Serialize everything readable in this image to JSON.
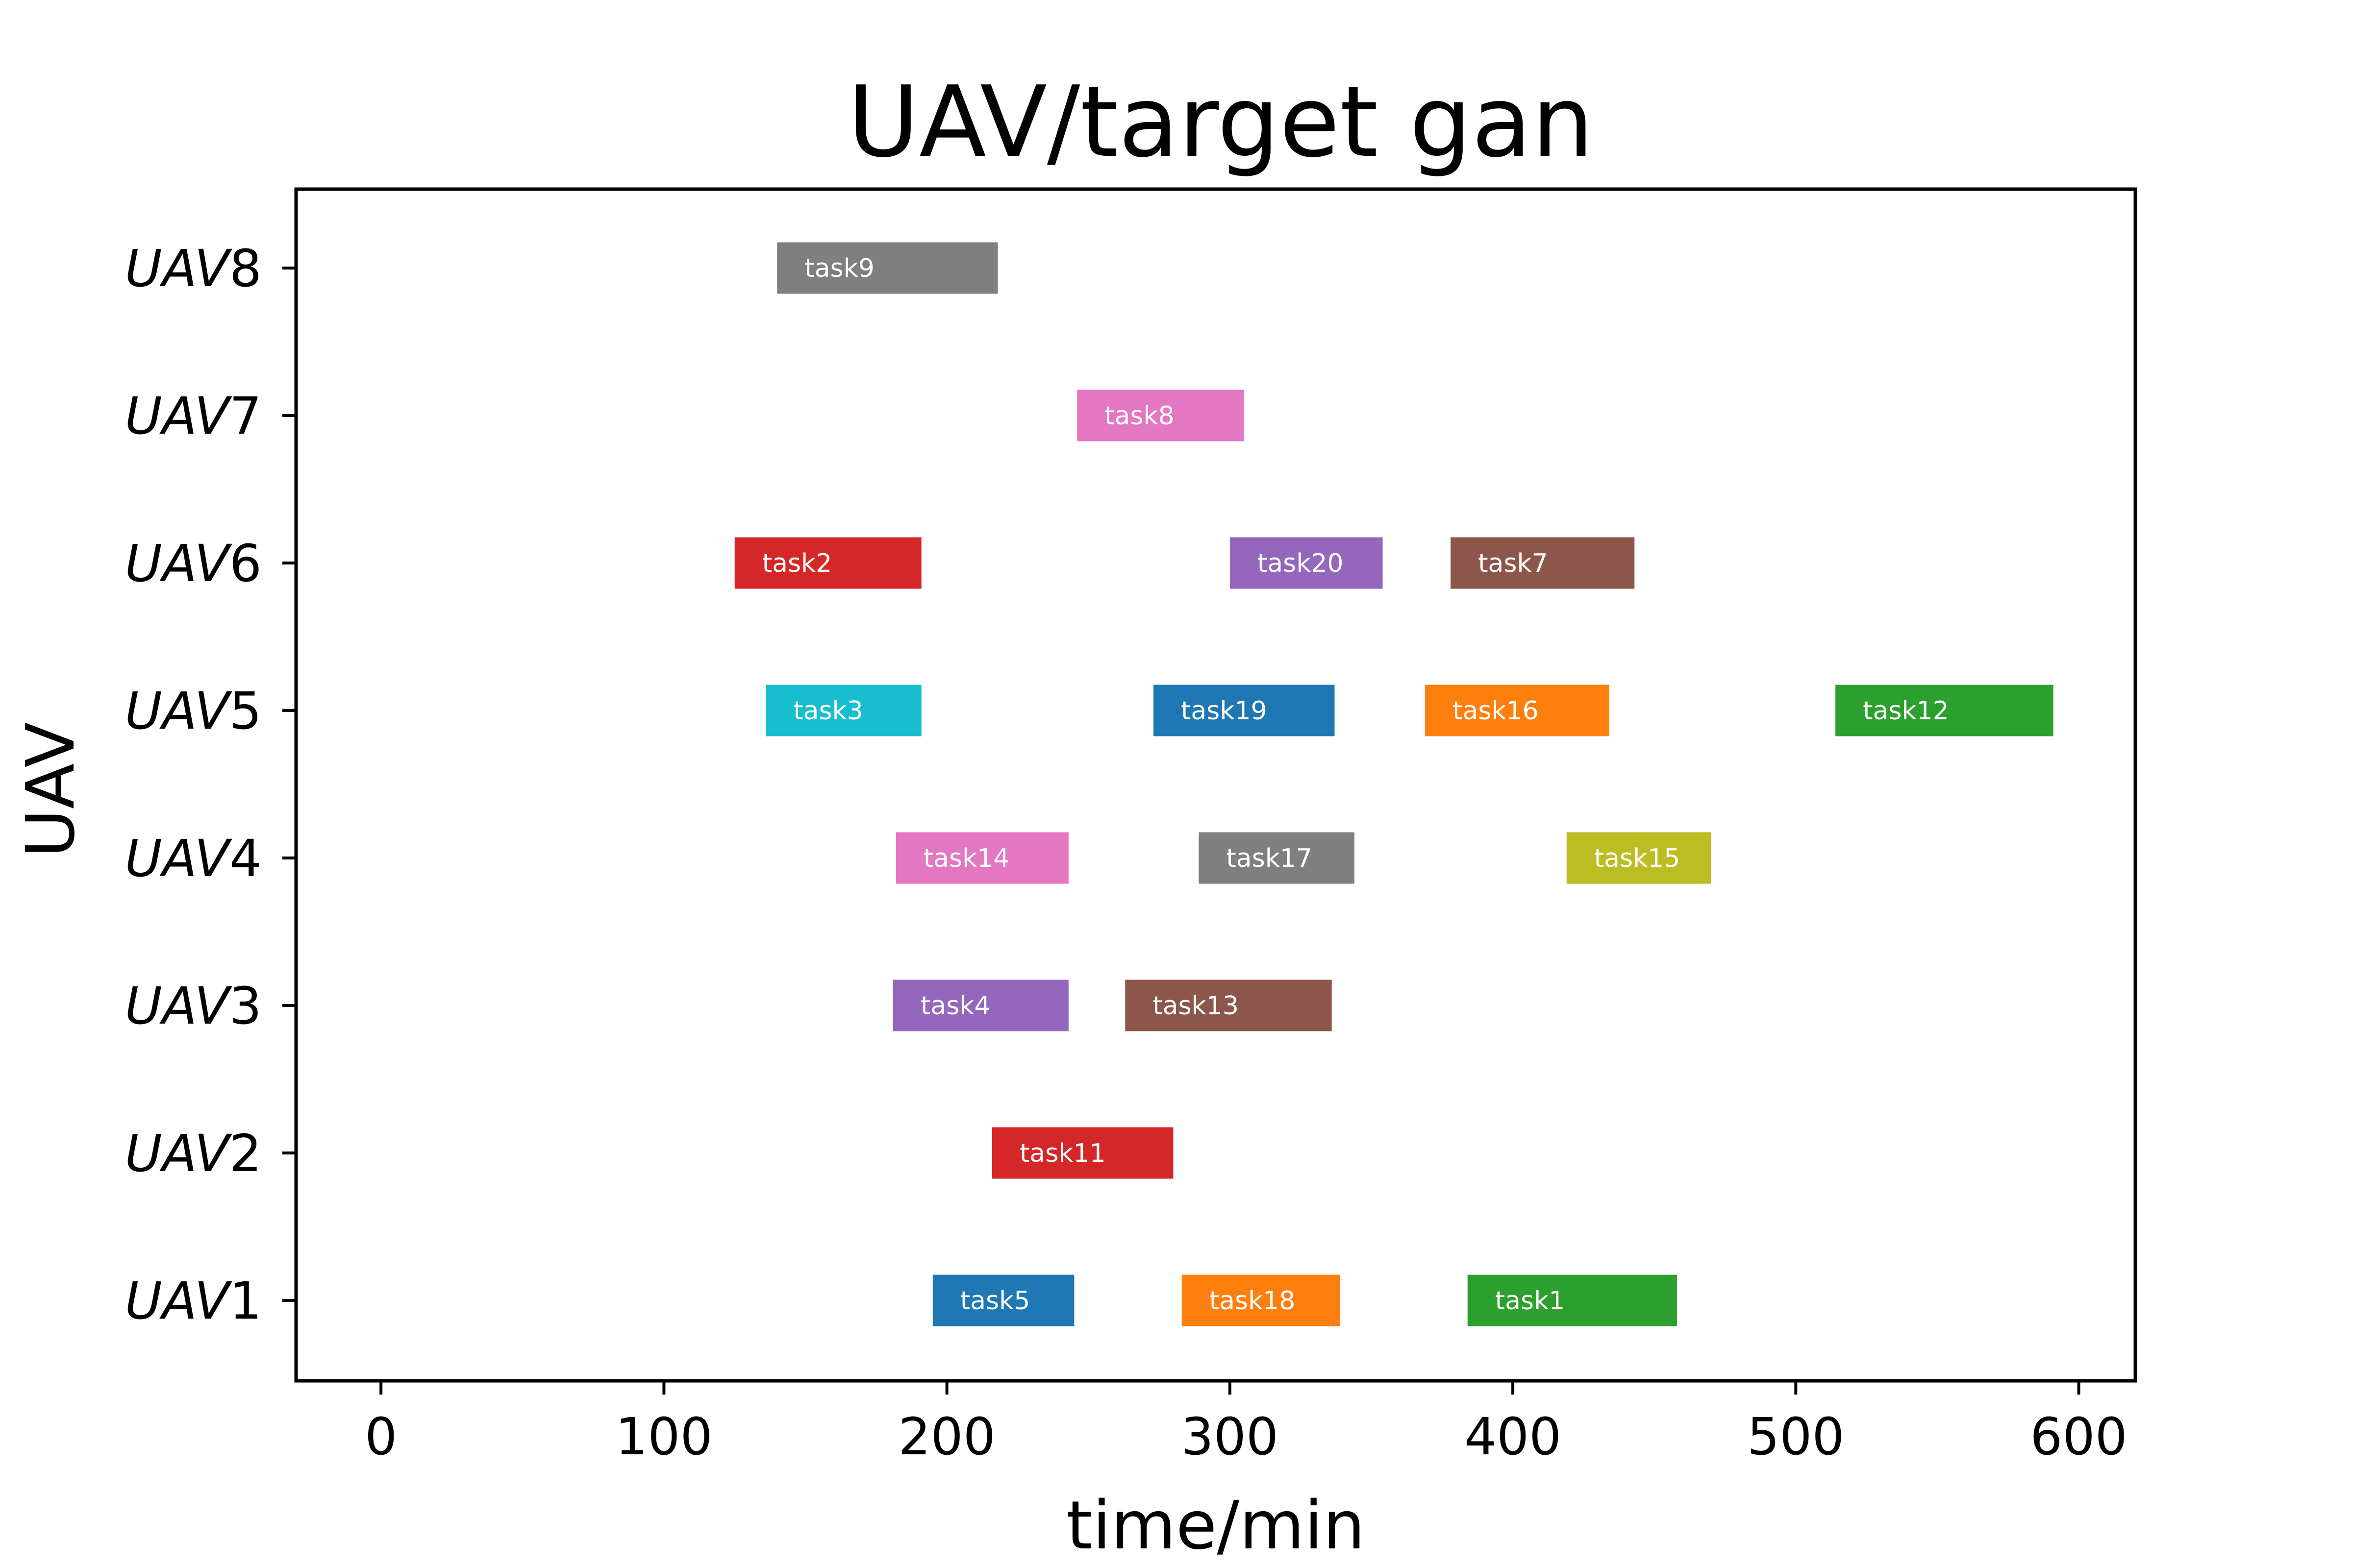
{
  "chart_data": {
    "type": "gantt",
    "title": "UAV/target gan",
    "xlabel": "time/min",
    "ylabel": "UAV",
    "xlim": [
      -30,
      620
    ],
    "x_ticks": [
      0,
      100,
      200,
      300,
      400,
      500,
      600
    ],
    "y_categories": [
      {
        "prefix": "UAV",
        "number": "1"
      },
      {
        "prefix": "UAV",
        "number": "2"
      },
      {
        "prefix": "UAV",
        "number": "3"
      },
      {
        "prefix": "UAV",
        "number": "4"
      },
      {
        "prefix": "UAV",
        "number": "5"
      },
      {
        "prefix": "UAV",
        "number": "6"
      },
      {
        "prefix": "UAV",
        "number": "7"
      },
      {
        "prefix": "UAV",
        "number": "8"
      }
    ],
    "tasks": [
      {
        "name": "task5",
        "uav": 1,
        "start": 195,
        "end": 245,
        "color": "#1f77b4"
      },
      {
        "name": "task18",
        "uav": 1,
        "start": 283,
        "end": 339,
        "color": "#ff7f0e"
      },
      {
        "name": "task1",
        "uav": 1,
        "start": 384,
        "end": 458,
        "color": "#2ca02c"
      },
      {
        "name": "task11",
        "uav": 2,
        "start": 216,
        "end": 280,
        "color": "#d62728"
      },
      {
        "name": "task4",
        "uav": 3,
        "start": 181,
        "end": 243,
        "color": "#9467bd"
      },
      {
        "name": "task13",
        "uav": 3,
        "start": 263,
        "end": 336,
        "color": "#8c564b"
      },
      {
        "name": "task14",
        "uav": 4,
        "start": 182,
        "end": 243,
        "color": "#e377c2"
      },
      {
        "name": "task17",
        "uav": 4,
        "start": 289,
        "end": 344,
        "color": "#7f7f7f"
      },
      {
        "name": "task15",
        "uav": 4,
        "start": 419,
        "end": 470,
        "color": "#bcbd22"
      },
      {
        "name": "task3",
        "uav": 5,
        "start": 136,
        "end": 191,
        "color": "#17becf"
      },
      {
        "name": "task19",
        "uav": 5,
        "start": 273,
        "end": 337,
        "color": "#1f77b4"
      },
      {
        "name": "task16",
        "uav": 5,
        "start": 369,
        "end": 434,
        "color": "#ff7f0e"
      },
      {
        "name": "task12",
        "uav": 5,
        "start": 514,
        "end": 591,
        "color": "#2ca02c"
      },
      {
        "name": "task2",
        "uav": 6,
        "start": 125,
        "end": 191,
        "color": "#d62728"
      },
      {
        "name": "task20",
        "uav": 6,
        "start": 300,
        "end": 354,
        "color": "#9467bd"
      },
      {
        "name": "task7",
        "uav": 6,
        "start": 378,
        "end": 443,
        "color": "#8c564b"
      },
      {
        "name": "task8",
        "uav": 7,
        "start": 246,
        "end": 305,
        "color": "#e377c2"
      },
      {
        "name": "task9",
        "uav": 8,
        "start": 140,
        "end": 218,
        "color": "#7f7f7f"
      }
    ]
  }
}
